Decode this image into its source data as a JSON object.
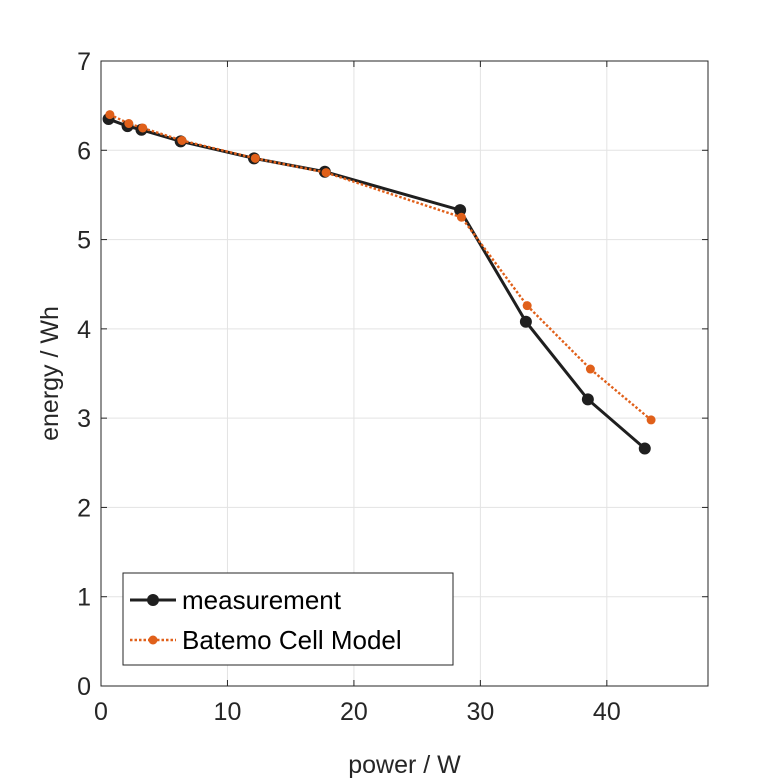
{
  "chart_data": {
    "type": "line",
    "title": "",
    "xlabel": "power / W",
    "ylabel": "energy / Wh",
    "xlim": [
      0,
      48
    ],
    "ylim": [
      0,
      7
    ],
    "xticks": [
      0,
      10,
      20,
      30,
      40
    ],
    "yticks": [
      0,
      1,
      2,
      3,
      4,
      5,
      6,
      7
    ],
    "xtick_labels": [
      "0",
      "10",
      "20",
      "30",
      "40"
    ],
    "ytick_labels": [
      "0",
      "1",
      "2",
      "3",
      "4",
      "5",
      "6",
      "7"
    ],
    "grid": true,
    "legend_position": "bottom-left",
    "series": [
      {
        "name": "measurement",
        "color": "#1f1f1f",
        "line_style": "solid",
        "marker": "filled-circle-large",
        "points": [
          [
            0.6,
            6.35
          ],
          [
            2.1,
            6.27
          ],
          [
            3.2,
            6.23
          ],
          [
            6.3,
            6.1
          ],
          [
            12.1,
            5.91
          ],
          [
            17.7,
            5.76
          ],
          [
            28.4,
            5.33
          ],
          [
            33.6,
            4.08
          ],
          [
            38.5,
            3.21
          ],
          [
            43.0,
            2.66
          ]
        ]
      },
      {
        "name": "Batemo Cell Model",
        "color": "#e0601a",
        "line_style": "dotted",
        "marker": "filled-circle-small",
        "points": [
          [
            0.7,
            6.4
          ],
          [
            2.2,
            6.3
          ],
          [
            3.3,
            6.25
          ],
          [
            6.4,
            6.11
          ],
          [
            12.2,
            5.91
          ],
          [
            17.8,
            5.75
          ],
          [
            28.5,
            5.25
          ],
          [
            33.7,
            4.26
          ],
          [
            38.7,
            3.55
          ],
          [
            43.5,
            2.98
          ]
        ]
      }
    ]
  }
}
